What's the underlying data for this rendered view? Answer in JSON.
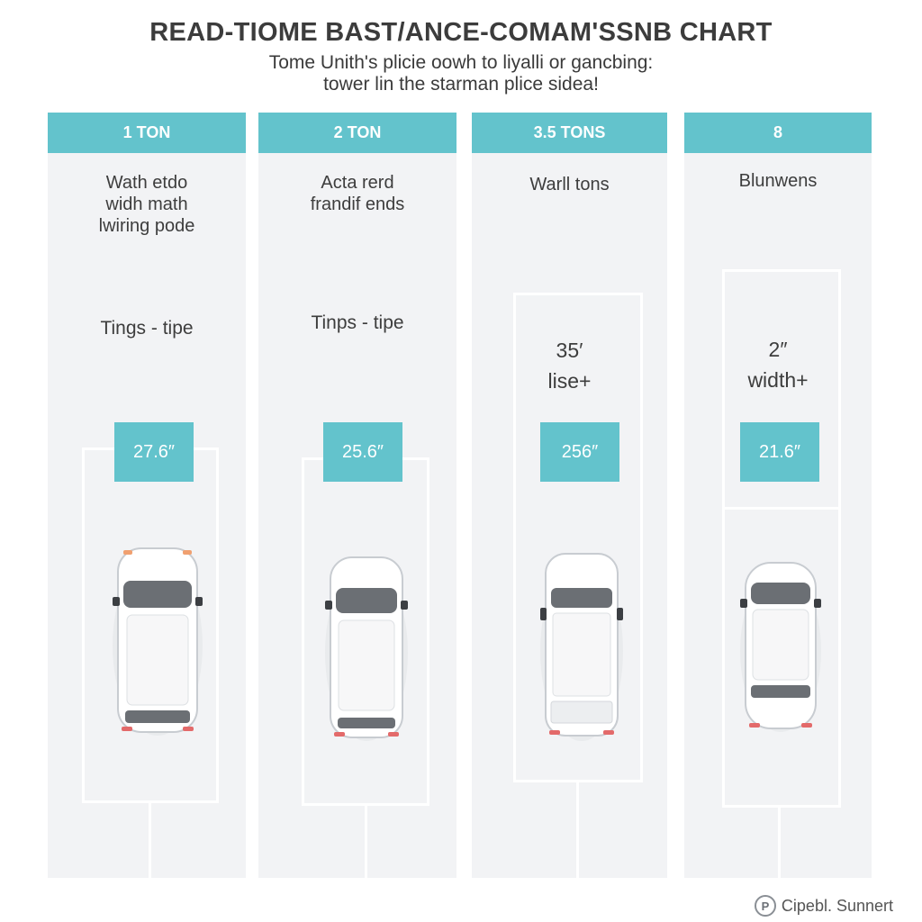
{
  "header": {
    "title": "READ-TIOME BAST/ANCE-COMAM'SSNB CHART",
    "subtitle_lines": [
      "Tome Unith's plicie oowh to liyalli or gancbing:",
      "tower lin the starman plice sidea!"
    ]
  },
  "columns": [
    {
      "header": "1 TON",
      "desc_lines": [
        "Wath etdo",
        "widh math",
        "lwiring pode"
      ],
      "tip": "Tings - tipe",
      "spot_label": [],
      "badge": "27.6″",
      "car_icon": "car-top-view-icon"
    },
    {
      "header": "2 TON",
      "desc_lines": [
        "Acta rerd",
        "frandif ends"
      ],
      "tip": "Tinps - tipe",
      "spot_label": [],
      "badge": "25.6″",
      "car_icon": "car-top-view-icon"
    },
    {
      "header": "3.5 TONS",
      "desc_lines": [
        "Warll tons"
      ],
      "tip": "",
      "spot_label": [
        "35′",
        "lise+"
      ],
      "badge": "256″",
      "car_icon": "car-top-view-icon"
    },
    {
      "header": "8",
      "desc_lines": [
        "Blunwens"
      ],
      "tip": "",
      "spot_label": [
        "2″",
        "width+"
      ],
      "badge": "21.6″",
      "car_icon": "car-top-view-icon"
    }
  ],
  "footer": {
    "logo_icon": "brand-logo-icon",
    "logo_glyph": "P",
    "text": "Cipebl. Sunnert"
  },
  "colors": {
    "accent": "#63c3cc",
    "column_bg": "#f2f3f5",
    "lines": "#ffffff"
  }
}
